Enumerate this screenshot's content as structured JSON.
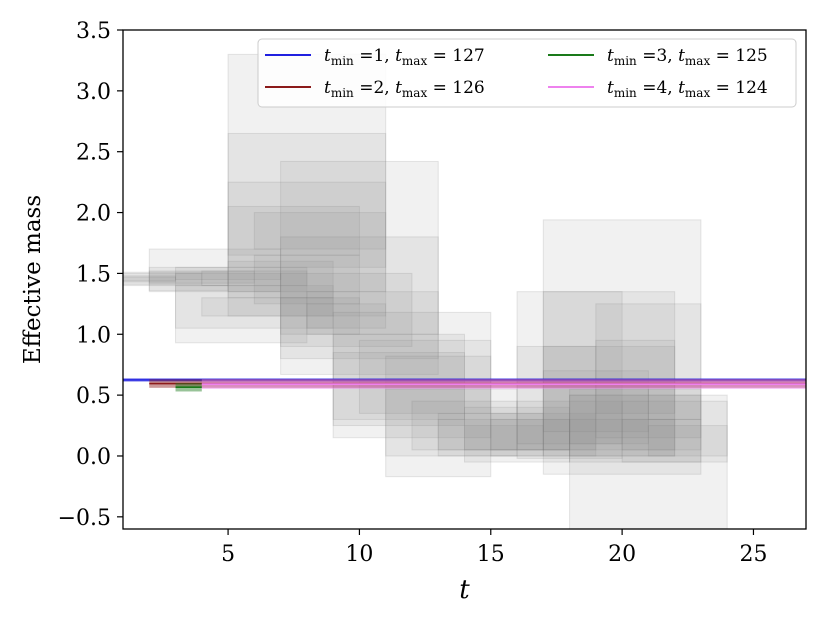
{
  "chart_data": {
    "type": "line",
    "xlabel": "t",
    "ylabel": "Effective mass",
    "xlim": [
      1,
      27
    ],
    "ylim": [
      -0.6,
      3.5
    ],
    "xticks": [
      5,
      10,
      15,
      20,
      25
    ],
    "yticks": [
      -0.5,
      0.0,
      0.5,
      1.0,
      1.5,
      2.0,
      2.5,
      3.0,
      3.5
    ],
    "ytick_labels": [
      "−0.5",
      "0.0",
      "0.5",
      "1.0",
      "1.5",
      "2.0",
      "2.5",
      "3.0",
      "3.5"
    ],
    "grid": false,
    "legend_position": "top-right",
    "series": [
      {
        "name": "t_min =1, t_max = 127",
        "color": "#2020e0",
        "x": [
          1,
          27
        ],
        "value": 0.625,
        "band": [
          0.61,
          0.64
        ]
      },
      {
        "name": "t_min =2, t_max = 126",
        "color": "#8b1a1a",
        "x": [
          2,
          27
        ],
        "value": 0.595,
        "band": [
          0.56,
          0.63
        ]
      },
      {
        "name": "t_min =3, t_max = 125",
        "color": "#1a7a1a",
        "x": [
          3,
          4
        ],
        "value": 0.565,
        "band": [
          0.53,
          0.6
        ]
      },
      {
        "name": "t_min =4, t_max = 124",
        "color": "#ee82ee",
        "x": [
          4,
          27
        ],
        "value": 0.59,
        "band": [
          0.55,
          0.63
        ]
      }
    ],
    "effective_mass_boxes": [
      {
        "t0": 0,
        "t1": 3,
        "lo": 1.43,
        "hi": 1.48
      },
      {
        "t0": 0,
        "t1": 3,
        "lo": 1.44,
        "hi": 1.47
      },
      {
        "t0": 0,
        "t1": 4,
        "lo": 1.41,
        "hi": 1.5
      },
      {
        "t0": 1,
        "t1": 5,
        "lo": 1.4,
        "hi": 1.51
      },
      {
        "t0": 2,
        "t1": 5,
        "lo": 1.36,
        "hi": 1.55
      },
      {
        "t0": 2,
        "t1": 6,
        "lo": 1.42,
        "hi": 1.52
      },
      {
        "t0": 2,
        "t1": 7,
        "lo": 1.35,
        "hi": 1.7
      },
      {
        "t0": 3,
        "t1": 7,
        "lo": 1.45,
        "hi": 1.5
      },
      {
        "t0": 3,
        "t1": 8,
        "lo": 0.93,
        "hi": 1.55
      },
      {
        "t0": 3,
        "t1": 9,
        "lo": 1.05,
        "hi": 1.4
      },
      {
        "t0": 4,
        "t1": 8,
        "lo": 1.4,
        "hi": 1.52
      },
      {
        "t0": 4,
        "t1": 9,
        "lo": 1.15,
        "hi": 1.3
      },
      {
        "t0": 5,
        "t1": 9,
        "lo": 1.3,
        "hi": 1.6
      },
      {
        "t0": 5,
        "t1": 11,
        "lo": 1.15,
        "hi": 3.3
      },
      {
        "t0": 5,
        "t1": 11,
        "lo": 1.35,
        "hi": 2.65
      },
      {
        "t0": 5,
        "t1": 11,
        "lo": 1.55,
        "hi": 2.25
      },
      {
        "t0": 5,
        "t1": 10,
        "lo": 1.65,
        "hi": 2.05
      },
      {
        "t0": 6,
        "t1": 11,
        "lo": 1.7,
        "hi": 2.0
      },
      {
        "t0": 6,
        "t1": 10,
        "lo": 1.25,
        "hi": 1.65
      },
      {
        "t0": 7,
        "t1": 13,
        "lo": 0.67,
        "hi": 2.42
      },
      {
        "t0": 7,
        "t1": 13,
        "lo": 0.8,
        "hi": 1.8
      },
      {
        "t0": 7,
        "t1": 12,
        "lo": 0.9,
        "hi": 1.5
      },
      {
        "t0": 7,
        "t1": 10,
        "lo": 1.0,
        "hi": 1.3
      },
      {
        "t0": 8,
        "t1": 11,
        "lo": 1.05,
        "hi": 1.25
      },
      {
        "t0": 8,
        "t1": 13,
        "lo": 1.0,
        "hi": 1.35
      },
      {
        "t0": 9,
        "t1": 14,
        "lo": 0.3,
        "hi": 1.0
      },
      {
        "t0": 9,
        "t1": 15,
        "lo": 0.15,
        "hi": 1.18
      },
      {
        "t0": 9,
        "t1": 14,
        "lo": 0.25,
        "hi": 0.85
      },
      {
        "t0": 10,
        "t1": 15,
        "lo": 0.35,
        "hi": 0.95
      },
      {
        "t0": 11,
        "t1": 15,
        "lo": -0.17,
        "hi": 0.82
      },
      {
        "t0": 11,
        "t1": 16,
        "lo": 0.0,
        "hi": 0.55
      },
      {
        "t0": 12,
        "t1": 16,
        "lo": 0.05,
        "hi": 0.45
      },
      {
        "t0": 13,
        "t1": 17,
        "lo": 0.0,
        "hi": 0.35
      },
      {
        "t0": 13,
        "t1": 18,
        "lo": 0.05,
        "hi": 0.3
      },
      {
        "t0": 14,
        "t1": 18,
        "lo": -0.05,
        "hi": 0.4
      },
      {
        "t0": 14,
        "t1": 17,
        "lo": 0.05,
        "hi": 0.25
      },
      {
        "t0": 15,
        "t1": 19,
        "lo": 0.0,
        "hi": 0.35
      },
      {
        "t0": 15,
        "t1": 18,
        "lo": 0.05,
        "hi": 0.3
      },
      {
        "t0": 16,
        "t1": 20,
        "lo": -0.02,
        "hi": 1.35
      },
      {
        "t0": 16,
        "t1": 19,
        "lo": 0.05,
        "hi": 0.9
      },
      {
        "t0": 16,
        "t1": 20,
        "lo": 0.1,
        "hi": 0.45
      },
      {
        "t0": 17,
        "t1": 23,
        "lo": -0.15,
        "hi": 1.94
      },
      {
        "t0": 17,
        "t1": 22,
        "lo": 0.0,
        "hi": 1.35
      },
      {
        "t0": 17,
        "t1": 22,
        "lo": 0.05,
        "hi": 0.9
      },
      {
        "t0": 17,
        "t1": 21,
        "lo": 0.2,
        "hi": 0.7
      },
      {
        "t0": 18,
        "t1": 21,
        "lo": 0.1,
        "hi": 0.55
      },
      {
        "t0": 18,
        "t1": 24,
        "lo": -0.62,
        "hi": 0.5
      },
      {
        "t0": 18,
        "t1": 23,
        "lo": -0.05,
        "hi": 0.5
      },
      {
        "t0": 18,
        "t1": 22,
        "lo": 0.0,
        "hi": 0.3
      },
      {
        "t0": 19,
        "t1": 23,
        "lo": 0.15,
        "hi": 1.25
      },
      {
        "t0": 19,
        "t1": 22,
        "lo": 0.35,
        "hi": 0.95
      },
      {
        "t0": 20,
        "t1": 24,
        "lo": -0.05,
        "hi": 0.45
      },
      {
        "t0": 20,
        "t1": 23,
        "lo": 0.05,
        "hi": 0.3
      },
      {
        "t0": 21,
        "t1": 24,
        "lo": 0.0,
        "hi": 0.25
      },
      {
        "t0": 21,
        "t1": 23,
        "lo": 0.3,
        "hi": 0.55
      }
    ]
  },
  "legend": {
    "entries": [
      {
        "min_value": "=1",
        "max_value": "= 127",
        "color": "#2020e0"
      },
      {
        "min_value": "=2",
        "max_value": "= 126",
        "color": "#8b1a1a"
      },
      {
        "min_value": "=3",
        "max_value": "= 125",
        "color": "#1a7a1a"
      },
      {
        "min_value": "=4",
        "max_value": "= 124",
        "color": "#ee82ee"
      }
    ],
    "var": "t",
    "min_sub": "min",
    "max_sub": "max"
  }
}
